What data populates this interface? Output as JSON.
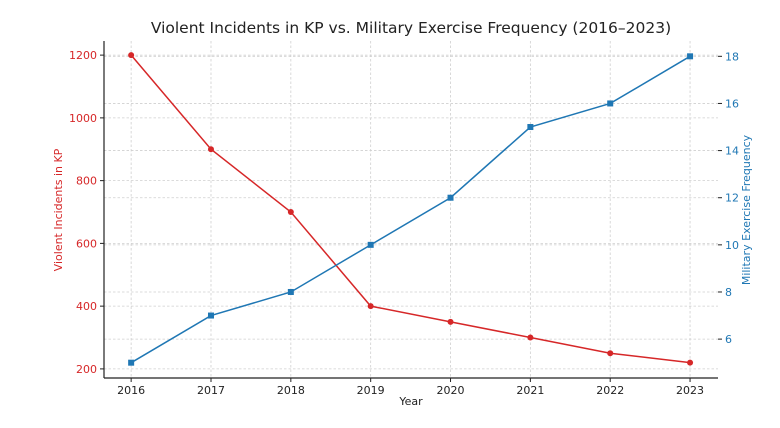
{
  "chart_data": {
    "type": "line",
    "title": "Violent Incidents in KP vs. Military Exercise Frequency (2016–2023)",
    "xlabel": "Year",
    "x": [
      2016,
      2017,
      2018,
      2019,
      2020,
      2021,
      2022,
      2023
    ],
    "x_tick_labels": [
      "2016",
      "2017",
      "2018",
      "2019",
      "2020",
      "2021",
      "2022",
      "2023"
    ],
    "grid": true,
    "series": [
      {
        "name": "Violent Incidents in KP",
        "axis": "left",
        "color": "#d62728",
        "marker": "circle",
        "values": [
          1200,
          900,
          700,
          400,
          350,
          300,
          250,
          220
        ]
      },
      {
        "name": "Military Exercise Frequency",
        "axis": "right",
        "color": "#1f77b4",
        "marker": "square",
        "values": [
          5,
          7,
          8,
          10,
          12,
          15,
          16,
          18
        ]
      }
    ],
    "y_left": {
      "label": "Violent Incidents in KP",
      "color": "#d62728",
      "ticks": [
        200,
        400,
        600,
        800,
        1000,
        1200
      ],
      "tick_labels": [
        "200",
        "400",
        "600",
        "800",
        "1000",
        "1200"
      ],
      "ylim": [
        171,
        1245
      ]
    },
    "y_right": {
      "label": "Military Exercise Frequency",
      "color": "#1f77b4",
      "ticks": [
        6,
        8,
        10,
        12,
        14,
        16,
        18
      ],
      "tick_labels": [
        "6",
        "8",
        "10",
        "12",
        "14",
        "16",
        "18"
      ],
      "ylim": [
        4.35,
        18.65
      ]
    },
    "xlim": [
      2015.66,
      2023.35
    ]
  }
}
